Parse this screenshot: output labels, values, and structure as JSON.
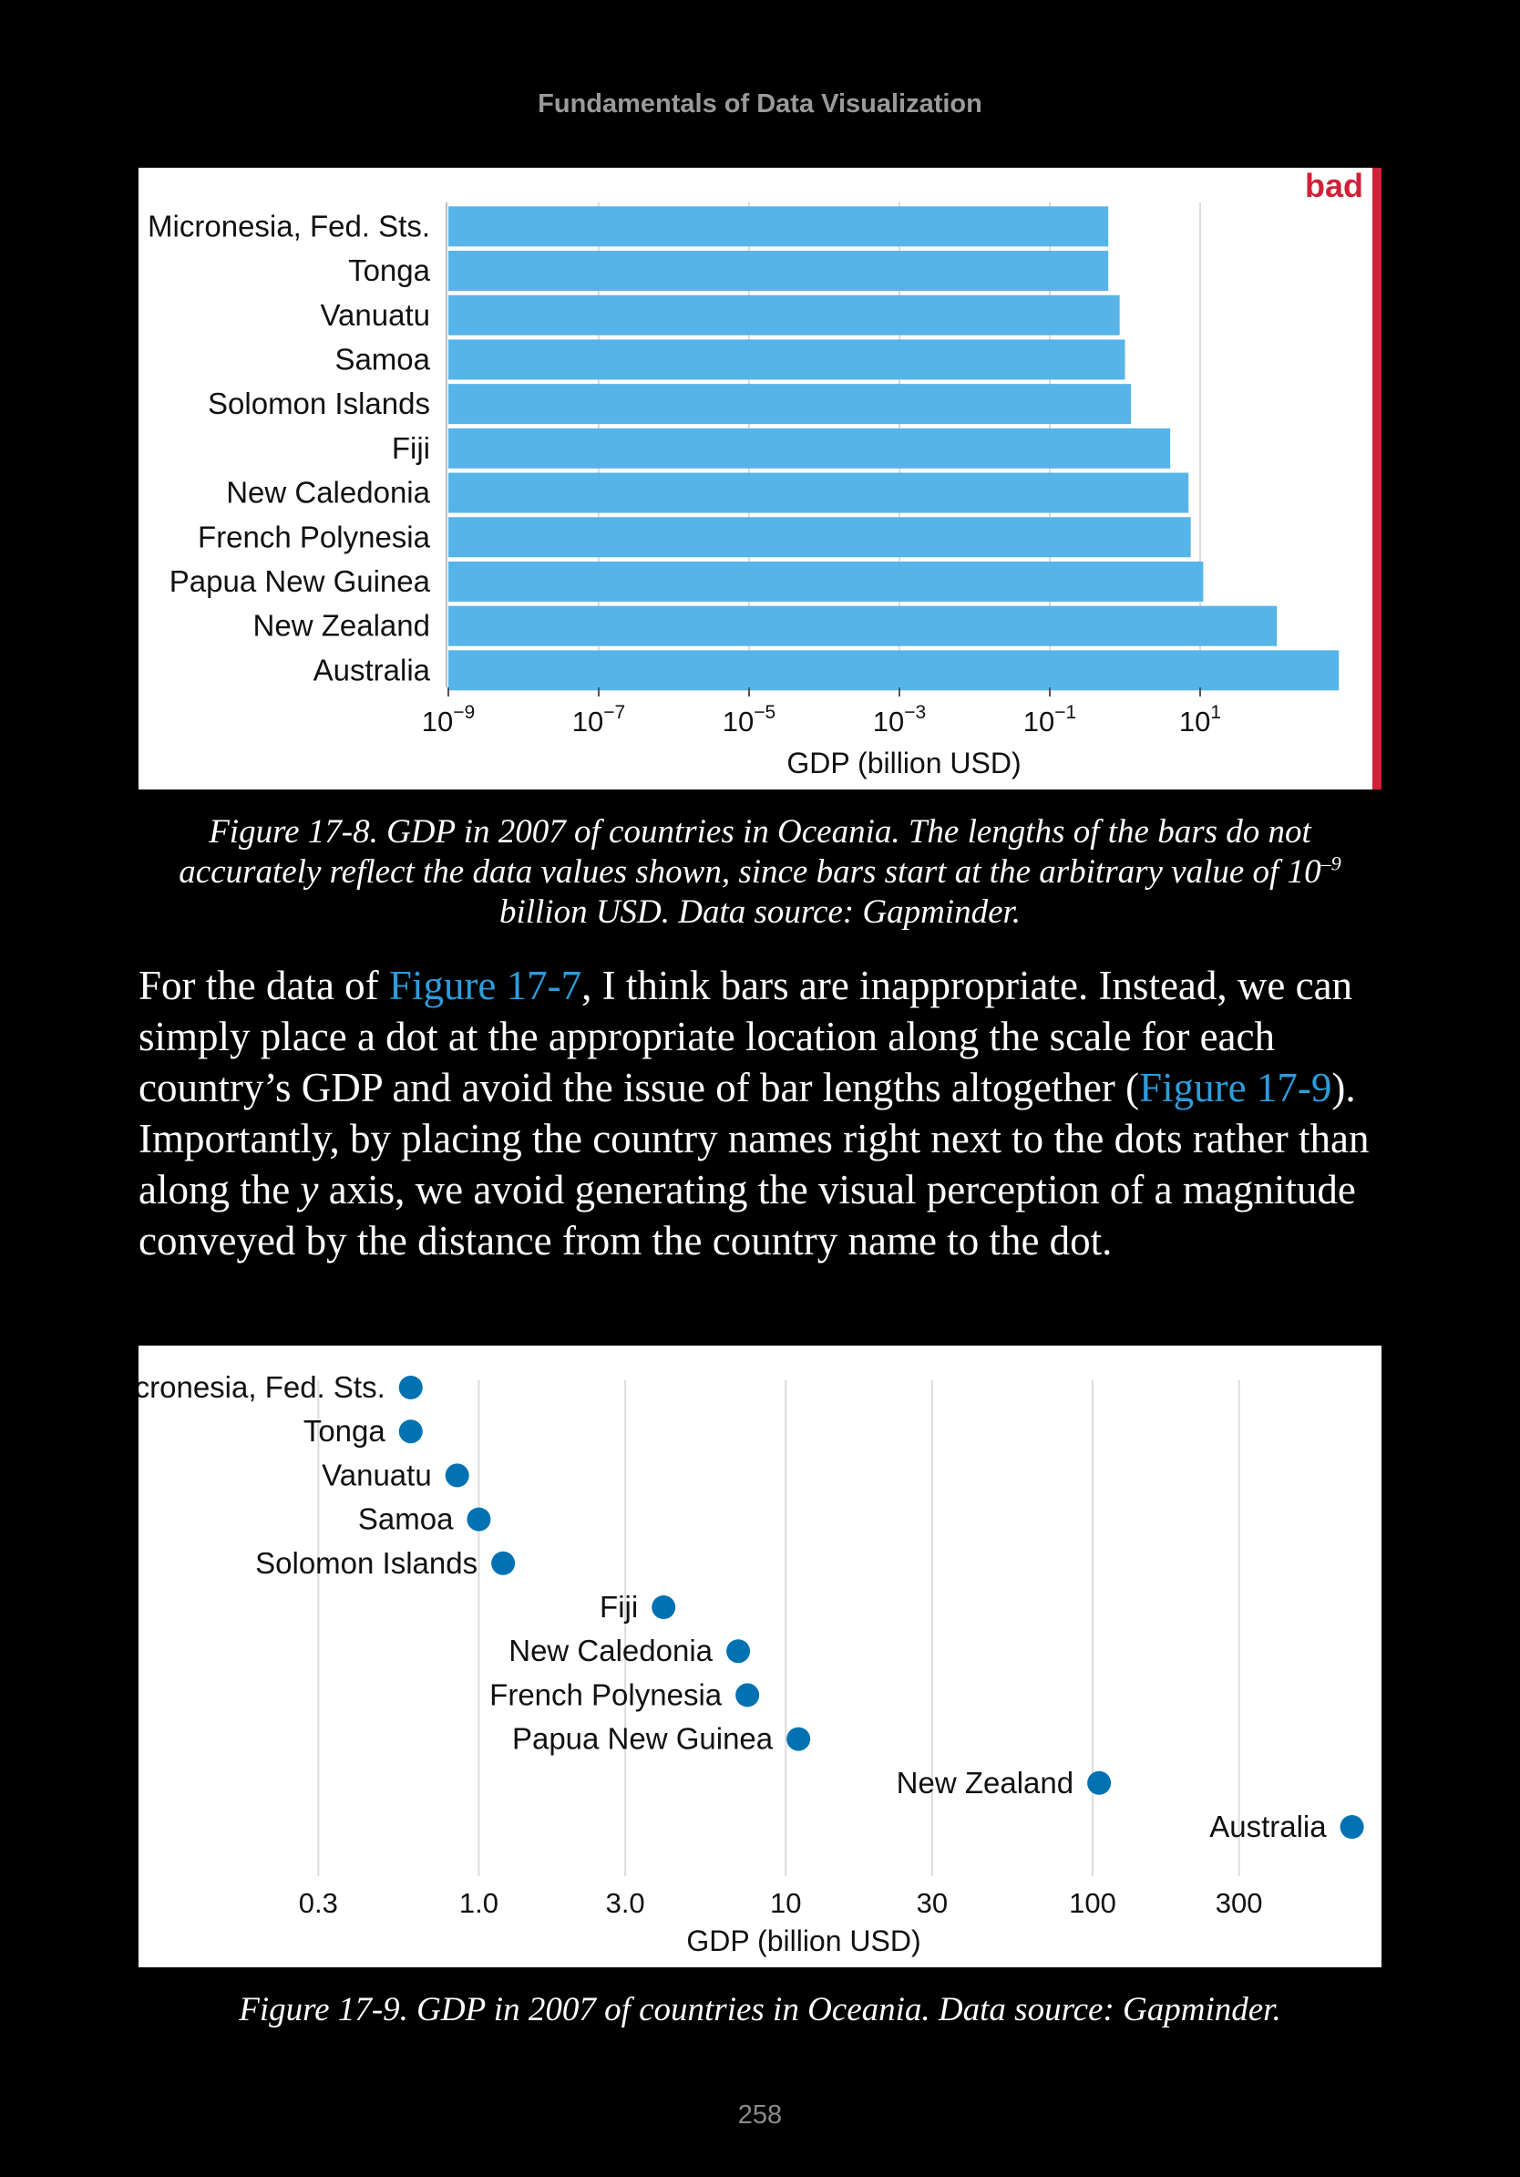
{
  "header": {
    "book_title": "Fundamentals of Data Visualization"
  },
  "figure_1": {
    "caption_p1": "Figure 17-8. GDP in 2007 of countries in Oceania. The lengths of the bars do not accurately reflect the data values shown, since bars start at the arbitrary value of 10",
    "caption_sup": "–9",
    "caption_p2": " billion USD. Data source: Gapminder."
  },
  "body": {
    "p1": "For the data of ",
    "link1": "Figure 17-7",
    "p2": ", I think bars are inappropriate. Instead, we can simply place a dot at the appropriate location along the scale for each country’s GDP and avoid the issue of bar lengths altogether (",
    "link2": "Figure 17-9",
    "p3": "). Importantly, by placing the country names right next to the dots rather than along the ",
    "italic": "y",
    "p4": " axis, we avoid generating the visual perception of a magnitude conveyed by the distance from the country name to the dot."
  },
  "figure_2": {
    "caption": "Figure 17-9. GDP in 2007 of countries in Oceania. Data source: Gapminder."
  },
  "footer": {
    "page_number": "258"
  },
  "chart_data": [
    {
      "type": "bar",
      "orientation": "horizontal",
      "flag_label": "bad",
      "flag_color": "#d02138",
      "bar_color": "#56b4e9",
      "xscale": "log10",
      "xlabel": "GDP (billion USD)",
      "xlim": [
        1e-09,
        1000
      ],
      "bar_baseline": 1e-09,
      "xticks": [
        {
          "value": 1e-09,
          "base": "10",
          "exp": "−9"
        },
        {
          "value": 1e-07,
          "base": "10",
          "exp": "−7"
        },
        {
          "value": 1e-05,
          "base": "10",
          "exp": "−5"
        },
        {
          "value": 0.001,
          "base": "10",
          "exp": "−3"
        },
        {
          "value": 0.1,
          "base": "10",
          "exp": "−1"
        },
        {
          "value": 10,
          "base": "10",
          "exp": "1"
        }
      ],
      "grid": "vertical",
      "categories": [
        "Micronesia, Fed. Sts.",
        "Tonga",
        "Vanuatu",
        "Samoa",
        "Solomon Islands",
        "Fiji",
        "New Caledonia",
        "French Polynesia",
        "Papua New Guinea",
        "New Zealand",
        "Australia"
      ],
      "values": [
        0.6,
        0.6,
        0.85,
        1.0,
        1.2,
        4.0,
        7.0,
        7.5,
        11.0,
        105,
        700
      ]
    },
    {
      "type": "scatter",
      "style": "dot",
      "point_color": "#0072b2",
      "xscale": "log10",
      "xlabel": "GDP (billion USD)",
      "xlim": [
        0.22,
        850
      ],
      "xticks": [
        {
          "value": 0.3,
          "label": "0.3"
        },
        {
          "value": 1,
          "label": "1.0"
        },
        {
          "value": 3,
          "label": "3.0"
        },
        {
          "value": 10,
          "label": "10"
        },
        {
          "value": 30,
          "label": "30"
        },
        {
          "value": 100,
          "label": "100"
        },
        {
          "value": 300,
          "label": "300"
        }
      ],
      "grid": "vertical",
      "categories": [
        "Micronesia, Fed. Sts.",
        "Tonga",
        "Vanuatu",
        "Samoa",
        "Solomon Islands",
        "Fiji",
        "New Caledonia",
        "French Polynesia",
        "Papua New Guinea",
        "New Zealand",
        "Australia"
      ],
      "values": [
        0.6,
        0.6,
        0.85,
        1.0,
        1.2,
        4.0,
        7.0,
        7.5,
        11.0,
        105,
        700
      ]
    }
  ]
}
